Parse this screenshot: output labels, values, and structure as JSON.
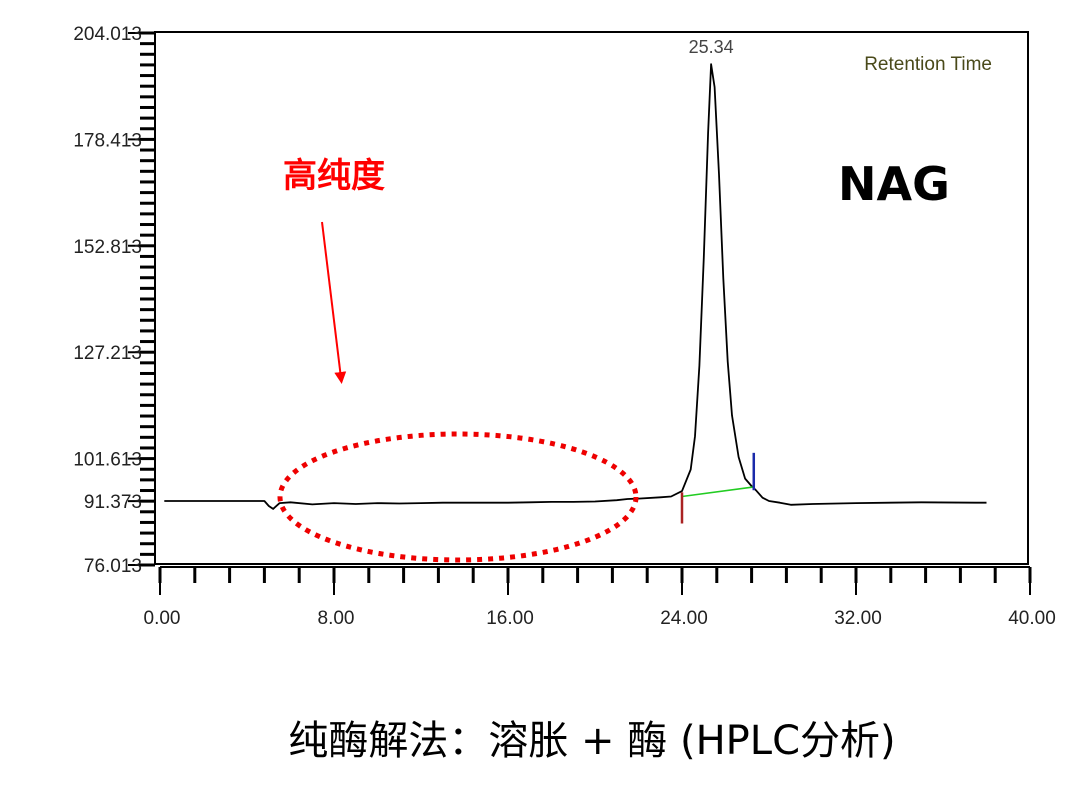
{
  "chart_data": {
    "type": "line",
    "title": "",
    "xlabel": "",
    "ylabel": "",
    "xlim": [
      0,
      40
    ],
    "ylim": [
      76.013,
      204.013
    ],
    "x_ticks": [
      "0.00",
      "8.00",
      "16.00",
      "24.00",
      "32.00",
      "40.00"
    ],
    "x_tick_values": [
      0,
      8,
      16,
      24,
      32,
      40
    ],
    "y_ticks": [
      "204.013",
      "178.413",
      "152.813",
      "127.213",
      "101.613",
      "91.373",
      "76.013"
    ],
    "y_tick_values": [
      204.013,
      178.413,
      152.813,
      127.213,
      101.613,
      91.373,
      76.013
    ],
    "legend_label": "Retention Time",
    "analyte_label": "NAG",
    "peak": {
      "retention_time": 25.34,
      "label": "25.34"
    },
    "series": [
      {
        "color": "#000000",
        "x": [
          0.2,
          3,
          4.8,
          5,
          5.2,
          5.5,
          6,
          7,
          8,
          9,
          10,
          11,
          12,
          13,
          14,
          15,
          16,
          17,
          18,
          19,
          20,
          21,
          21.5,
          22,
          23,
          23.5,
          24,
          24.4,
          24.6,
          24.8,
          25.0,
          25.2,
          25.34,
          25.5,
          25.7,
          25.9,
          26.1,
          26.3,
          26.6,
          26.9,
          27.2,
          27.4,
          27.7,
          28,
          28.5,
          29,
          30,
          32,
          35,
          37.5,
          38
        ],
        "y": [
          91.4,
          91.4,
          91.4,
          90.2,
          89.5,
          90.9,
          91.1,
          90.6,
          90.9,
          90.7,
          90.9,
          90.8,
          90.9,
          91.0,
          91.0,
          91.0,
          91.0,
          91.1,
          91.2,
          91.2,
          91.3,
          91.6,
          91.9,
          92.0,
          92.3,
          92.5,
          93.8,
          99,
          107,
          124,
          150,
          180,
          196.5,
          191,
          170,
          145,
          125,
          112,
          102,
          96.8,
          95.0,
          94.0,
          92.2,
          91.4,
          91.0,
          90.5,
          90.7,
          90.9,
          91.1,
          91.0,
          91.0
        ]
      },
      {
        "color": "#22cc22",
        "x": [
          24.0,
          27.3
        ],
        "y": [
          92.5,
          94.8
        ]
      }
    ],
    "integration_marks": [
      {
        "x": 24.0,
        "y_from": 93.5,
        "y_to": 86.0,
        "color": "#aa2222"
      },
      {
        "x": 27.3,
        "y_from": 94.0,
        "y_to": 103.0,
        "color": "#1a2aaa"
      }
    ],
    "annotations": [
      {
        "text": "高纯度",
        "color": "#ff0000"
      }
    ],
    "grid": false,
    "legend": "top-right"
  },
  "caption": "纯酶解法：溶胀 + 酶 (HPLC分析)"
}
